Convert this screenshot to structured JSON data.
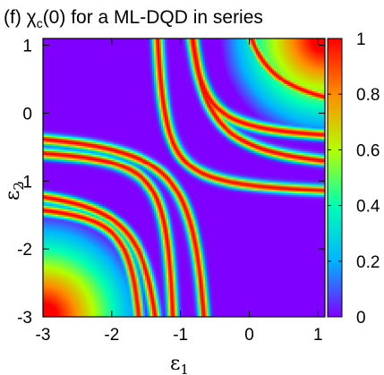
{
  "chart_data": {
    "type": "heatmap",
    "title": {
      "prefix": "(f) ",
      "symbol": "χ",
      "subscript": "c",
      "suffix": "(0) for a ML-DQD in series"
    },
    "xlabel": {
      "symbol": "ε",
      "subscript": "1"
    },
    "ylabel": {
      "symbol": "ε",
      "subscript": "2"
    },
    "xlim": [
      -3,
      1.1
    ],
    "ylim": [
      -3,
      1.1
    ],
    "x_ticks": [
      "-3",
      "-2",
      "-1",
      "0",
      "1"
    ],
    "y_ticks": [
      "1",
      "0",
      "-1",
      "-2",
      "-3"
    ],
    "colorbar": {
      "range": [
        0,
        1
      ],
      "ticks": [
        "1",
        "0.8",
        "0.6",
        "0.4",
        "0.2",
        "0"
      ],
      "colors": [
        "#7f00ff",
        "#00b4ff",
        "#00ffb4",
        "#b4ff00",
        "#ff8c00",
        "#ff0000"
      ]
    },
    "features": {
      "ridges": [
        {
          "label": "upper branch",
          "description": "resonance ridge from top (x≈-1.6, y=1.1) bending through (-1.2,-0.5) to right (x=1.1, y≈-0.5)"
        },
        {
          "label": "lower branch",
          "description": "resonance ridge from left (x=-3, y≈-1.35) bending through (-1.6,-1.1) to bottom (x≈-0.2, y=-3)"
        },
        {
          "label": "upper-left branch",
          "description": "resonance ridge from left (x=-3, y≈-0.3) curving up to top (x≈-0.7, y=1.1)"
        },
        {
          "label": "lower-right branch",
          "description": "resonance ridge from right (x=1.1, y≈-0.7) curving down to bottom (x≈-1.3, y=-3)"
        }
      ],
      "hot_corners": [
        "top-right (x=1.1, y=1.1)",
        "bottom-left (x=-3, y=-3)"
      ],
      "background_value": 0
    }
  }
}
